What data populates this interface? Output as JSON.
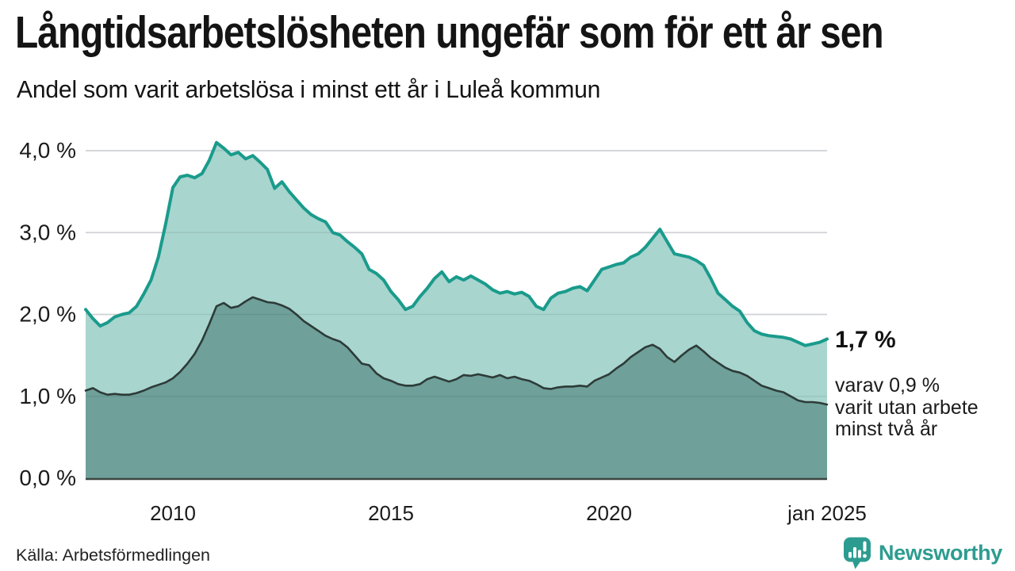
{
  "chart_data": {
    "type": "area",
    "title": "Långtidsarbetslösheten ungefär som för ett år sen",
    "subtitle": "Andel som varit arbetslösa i minst ett år i Luleå kommun",
    "x_range": [
      2008,
      2025
    ],
    "ylim": [
      0,
      4.3
    ],
    "grid": true,
    "legend_position": "none",
    "x_ticks": [
      {
        "t": 2010,
        "label": "2010"
      },
      {
        "t": 2015,
        "label": "2015"
      },
      {
        "t": 2020,
        "label": "2020"
      },
      {
        "t": 2025,
        "label": "jan 2025"
      }
    ],
    "y_ticks": [
      {
        "v": 0,
        "label": "0,0 %"
      },
      {
        "v": 1,
        "label": "1,0 %"
      },
      {
        "v": 2,
        "label": "2,0 %"
      },
      {
        "v": 3,
        "label": "3,0 %"
      },
      {
        "v": 4,
        "label": "4,0 %"
      }
    ],
    "colors": {
      "grid": "#e4e4e8",
      "axis": "#3c4440"
    },
    "series": [
      {
        "name": "arbetslösa minst ett år",
        "color": "#1a9b8c",
        "fill": "#a8d5ce",
        "end_value": 1.7,
        "values": [
          2.06,
          1.95,
          1.86,
          1.9,
          1.97,
          2.0,
          2.02,
          2.1,
          2.25,
          2.42,
          2.7,
          3.1,
          3.55,
          3.68,
          3.7,
          3.67,
          3.72,
          3.88,
          4.1,
          4.03,
          3.95,
          3.98,
          3.9,
          3.94,
          3.86,
          3.77,
          3.54,
          3.62,
          3.5,
          3.4,
          3.3,
          3.22,
          3.17,
          3.13,
          3.0,
          2.97,
          2.89,
          2.82,
          2.74,
          2.55,
          2.5,
          2.42,
          2.28,
          2.18,
          2.06,
          2.1,
          2.22,
          2.32,
          2.44,
          2.52,
          2.4,
          2.46,
          2.42,
          2.47,
          2.42,
          2.37,
          2.3,
          2.26,
          2.28,
          2.25,
          2.27,
          2.22,
          2.1,
          2.06,
          2.2,
          2.26,
          2.28,
          2.32,
          2.34,
          2.29,
          2.42,
          2.55,
          2.58,
          2.61,
          2.63,
          2.7,
          2.74,
          2.82,
          2.93,
          3.04,
          2.89,
          2.74,
          2.72,
          2.7,
          2.66,
          2.6,
          2.44,
          2.26,
          2.18,
          2.1,
          2.04,
          1.9,
          1.8,
          1.76,
          1.74,
          1.73,
          1.72,
          1.7,
          1.66,
          1.62,
          1.64,
          1.66,
          1.7
        ]
      },
      {
        "name": "arbetslösa minst två år",
        "color": "#2d3b38",
        "fill": "#6fa09a",
        "end_value": 0.9,
        "values": [
          1.07,
          1.1,
          1.05,
          1.02,
          1.03,
          1.02,
          1.02,
          1.04,
          1.07,
          1.11,
          1.14,
          1.17,
          1.22,
          1.3,
          1.4,
          1.52,
          1.68,
          1.88,
          2.1,
          2.14,
          2.08,
          2.1,
          2.16,
          2.21,
          2.18,
          2.15,
          2.14,
          2.11,
          2.07,
          2.0,
          1.92,
          1.86,
          1.8,
          1.74,
          1.7,
          1.67,
          1.6,
          1.5,
          1.4,
          1.38,
          1.28,
          1.22,
          1.19,
          1.15,
          1.13,
          1.13,
          1.15,
          1.21,
          1.24,
          1.21,
          1.18,
          1.21,
          1.26,
          1.25,
          1.27,
          1.25,
          1.23,
          1.26,
          1.22,
          1.24,
          1.21,
          1.19,
          1.15,
          1.1,
          1.09,
          1.11,
          1.12,
          1.12,
          1.13,
          1.12,
          1.19,
          1.23,
          1.27,
          1.34,
          1.4,
          1.48,
          1.54,
          1.6,
          1.63,
          1.58,
          1.48,
          1.42,
          1.5,
          1.57,
          1.62,
          1.55,
          1.47,
          1.41,
          1.35,
          1.31,
          1.29,
          1.25,
          1.19,
          1.13,
          1.1,
          1.07,
          1.05,
          1.0,
          0.95,
          0.93,
          0.93,
          0.92,
          0.9
        ]
      }
    ],
    "annotations": {
      "end_value_label": "1,7 %",
      "end_note": "varav 0,9 %\nvarit utan arbete\nminst två år"
    }
  },
  "source": {
    "label": "Källa: Arbetsförmedlingen"
  },
  "branding": {
    "name": "Newsworthy",
    "color": "#2d9c90"
  }
}
